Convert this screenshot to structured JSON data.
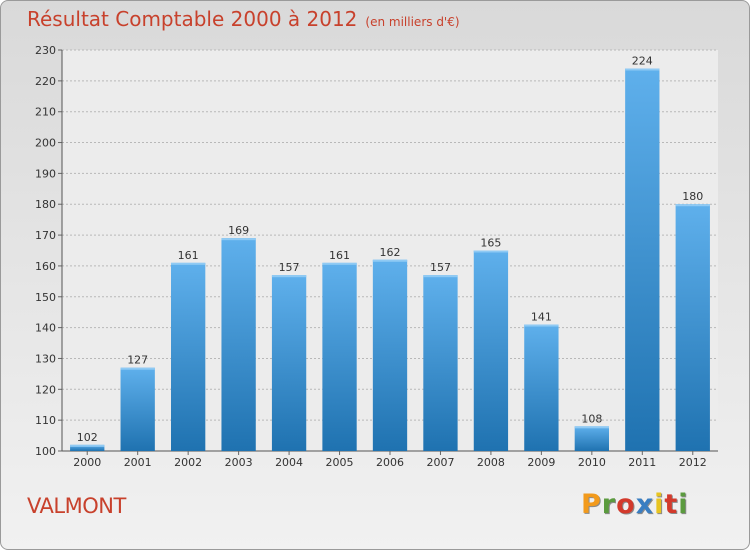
{
  "header": {
    "title": "Résultat Comptable 2000 à 2012",
    "subtitle": "(en milliers d'€)"
  },
  "footer": {
    "place": "VALMONT",
    "brand": "Proxiti",
    "brand_letters": [
      "P",
      "r",
      "o",
      "x",
      "i",
      "t",
      "i"
    ],
    "brand_colors": [
      "#f29a1c",
      "#5b9b3e",
      "#d33a2c",
      "#3a7ec2",
      "#e8c420",
      "#d33a2c",
      "#5b9b3e"
    ]
  },
  "colors": {
    "bar_light": "#5fb0ec",
    "bar_dark": "#1f72b0",
    "title": "#c8412c",
    "grid": "#b8b8b8"
  },
  "chart_data": {
    "type": "bar",
    "title": "Résultat Comptable 2000 à 2012",
    "subtitle": "(en milliers d'€)",
    "categories": [
      "2000",
      "2001",
      "2002",
      "2003",
      "2004",
      "2005",
      "2006",
      "2007",
      "2008",
      "2009",
      "2010",
      "2011",
      "2012"
    ],
    "values": [
      102,
      127,
      161,
      169,
      157,
      161,
      162,
      157,
      165,
      141,
      108,
      224,
      180
    ],
    "ylim": [
      100,
      230
    ],
    "yticks": [
      100,
      110,
      120,
      130,
      140,
      150,
      160,
      170,
      180,
      190,
      200,
      210,
      220,
      230
    ],
    "grid": true,
    "data_labels": true
  }
}
